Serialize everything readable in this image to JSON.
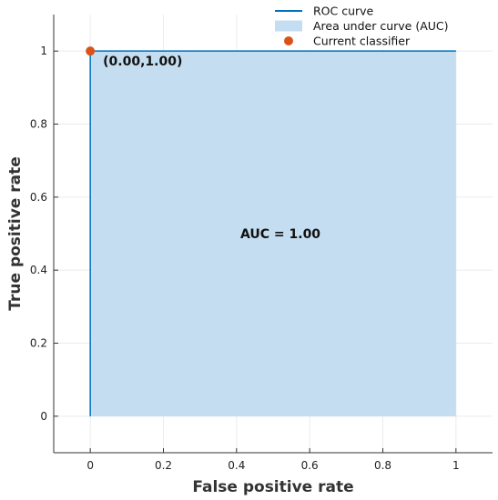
{
  "chart_data": {
    "type": "line",
    "title": "",
    "xlabel": "False positive rate",
    "ylabel": "True positive rate",
    "xlim": [
      -0.1,
      1.1
    ],
    "ylim": [
      -0.1,
      1.1
    ],
    "x_ticks": [
      0,
      0.2,
      0.4,
      0.6,
      0.8,
      1
    ],
    "x_tick_labels": [
      "0",
      "0.2",
      "0.4",
      "0.6",
      "0.8",
      "1"
    ],
    "y_ticks": [
      0,
      0.2,
      0.4,
      0.6,
      0.8,
      1
    ],
    "y_tick_labels": [
      "0",
      "0.2",
      "0.4",
      "0.6",
      "0.8",
      "1"
    ],
    "grid": true,
    "legend_position": "top-right",
    "series": [
      {
        "name": "ROC curve",
        "kind": "line",
        "color": "#0072BD",
        "x": [
          0,
          0,
          1
        ],
        "y": [
          0,
          1,
          1
        ]
      },
      {
        "name": "Area under curve (AUC)",
        "kind": "area",
        "color": "#C5DDF1",
        "x": [
          0,
          0,
          1,
          1
        ],
        "y": [
          0,
          1,
          1,
          0
        ]
      },
      {
        "name": "Current classifier",
        "kind": "scatter",
        "color": "#D95319",
        "x": [
          0
        ],
        "y": [
          1
        ]
      }
    ],
    "annotations": [
      {
        "text": "(0.00,1.00)",
        "x": 0,
        "y": 1,
        "role": "point-label"
      },
      {
        "text": "AUC = 1.00",
        "x": 0.52,
        "y": 0.5,
        "role": "center-label"
      }
    ]
  }
}
